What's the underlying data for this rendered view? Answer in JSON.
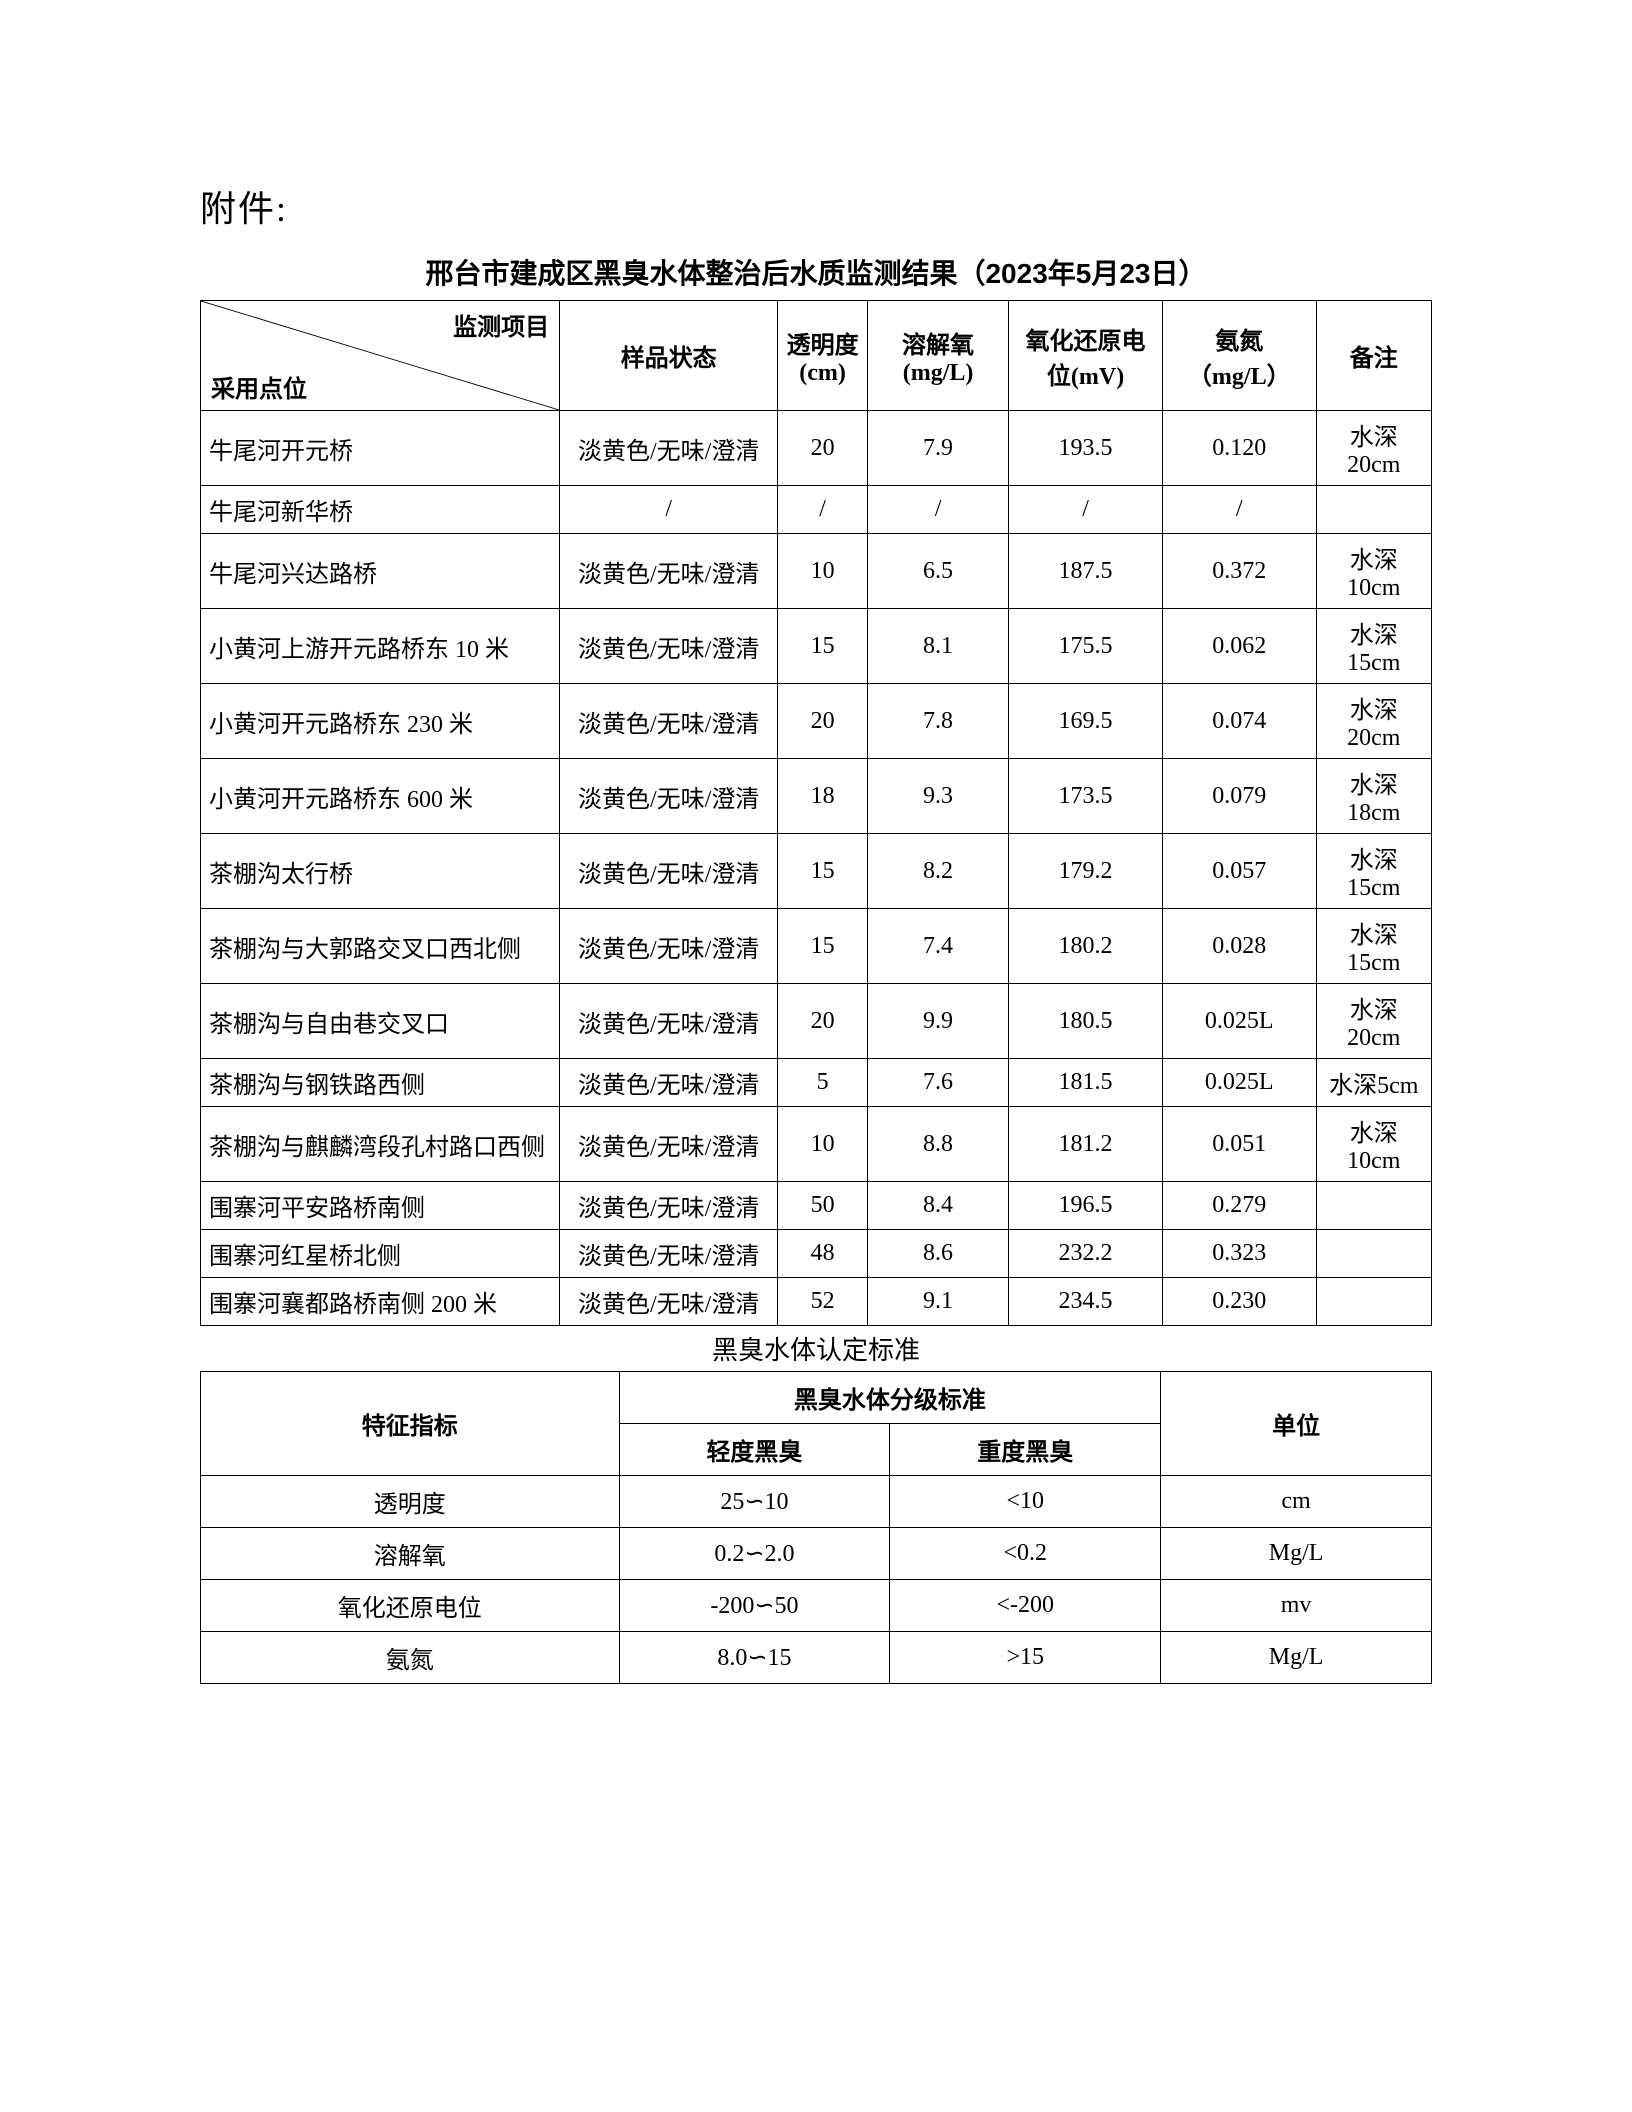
{
  "attachment_label": "附件:",
  "main_title": "邢台市建成区黑臭水体整治后水质监测结果（2023年5月23日）",
  "header": {
    "diag_top": "监测项目",
    "diag_bottom": "采用点位",
    "status": "样品状态",
    "transparency": "透明度(cm)",
    "do": "溶解氧(mg/L)",
    "orp": "氧化还原电位(mV)",
    "nh": "氨氮（mg/L）",
    "note": "备注"
  },
  "rows": [
    {
      "loc": "牛尾河开元桥",
      "status": "淡黄色/无味/澄清",
      "trans": "20",
      "do": "7.9",
      "orp": "193.5",
      "nh": "0.120",
      "note": "水深20cm"
    },
    {
      "loc": "牛尾河新华桥",
      "status": "/",
      "trans": "/",
      "do": "/",
      "orp": "/",
      "nh": "/",
      "note": ""
    },
    {
      "loc": "牛尾河兴达路桥",
      "status": "淡黄色/无味/澄清",
      "trans": "10",
      "do": "6.5",
      "orp": "187.5",
      "nh": "0.372",
      "note": "水深10cm"
    },
    {
      "loc": "小黄河上游开元路桥东 10 米",
      "status": "淡黄色/无味/澄清",
      "trans": "15",
      "do": "8.1",
      "orp": "175.5",
      "nh": "0.062",
      "note": "水深15cm"
    },
    {
      "loc": "小黄河开元路桥东 230 米",
      "status": "淡黄色/无味/澄清",
      "trans": "20",
      "do": "7.8",
      "orp": "169.5",
      "nh": "0.074",
      "note": "水深20cm"
    },
    {
      "loc": "小黄河开元路桥东 600 米",
      "status": "淡黄色/无味/澄清",
      "trans": "18",
      "do": "9.3",
      "orp": "173.5",
      "nh": "0.079",
      "note": "水深18cm"
    },
    {
      "loc": "茶棚沟太行桥",
      "status": "淡黄色/无味/澄清",
      "trans": "15",
      "do": "8.2",
      "orp": "179.2",
      "nh": "0.057",
      "note": "水深15cm"
    },
    {
      "loc": "茶棚沟与大郭路交叉口西北侧",
      "status": "淡黄色/无味/澄清",
      "trans": "15",
      "do": "7.4",
      "orp": "180.2",
      "nh": "0.028",
      "note": "水深15cm"
    },
    {
      "loc": "茶棚沟与自由巷交叉口",
      "status": "淡黄色/无味/澄清",
      "trans": "20",
      "do": "9.9",
      "orp": "180.5",
      "nh": "0.025L",
      "note": "水深20cm"
    },
    {
      "loc": "茶棚沟与钢铁路西侧",
      "status": "淡黄色/无味/澄清",
      "trans": "5",
      "do": "7.6",
      "orp": "181.5",
      "nh": "0.025L",
      "note": "水深5cm"
    },
    {
      "loc": "茶棚沟与麒麟湾段孔村路口西侧",
      "status": "淡黄色/无味/澄清",
      "trans": "10",
      "do": "8.8",
      "orp": "181.2",
      "nh": "0.051",
      "note": "水深10cm"
    },
    {
      "loc": "围寨河平安路桥南侧",
      "status": "淡黄色/无味/澄清",
      "trans": "50",
      "do": "8.4",
      "orp": "196.5",
      "nh": "0.279",
      "note": ""
    },
    {
      "loc": "围寨河红星桥北侧",
      "status": "淡黄色/无味/澄清",
      "trans": "48",
      "do": "8.6",
      "orp": "232.2",
      "nh": "0.323",
      "note": ""
    },
    {
      "loc": "围寨河襄都路桥南侧 200 米",
      "status": "淡黄色/无味/澄清",
      "trans": "52",
      "do": "9.1",
      "orp": "234.5",
      "nh": "0.230",
      "note": ""
    }
  ],
  "subtitle": "黑臭水体认定标准",
  "std_header": {
    "indicator": "特征指标",
    "grading_std": "黑臭水体分级标准",
    "light": "轻度黑臭",
    "heavy": "重度黑臭",
    "unit": "单位"
  },
  "std_rows": [
    {
      "indicator": "透明度",
      "light": "25∽10",
      "heavy": "<10",
      "unit": "cm"
    },
    {
      "indicator": "溶解氧",
      "light": "0.2∽2.0",
      "heavy": "<0.2",
      "unit": "Mg/L"
    },
    {
      "indicator": "氧化还原电位",
      "light": "-200∽50",
      "heavy": "<-200",
      "unit": "mv"
    },
    {
      "indicator": "氨氮",
      "light": "8.0∽15",
      "heavy": ">15",
      "unit": "Mg/L"
    }
  ]
}
